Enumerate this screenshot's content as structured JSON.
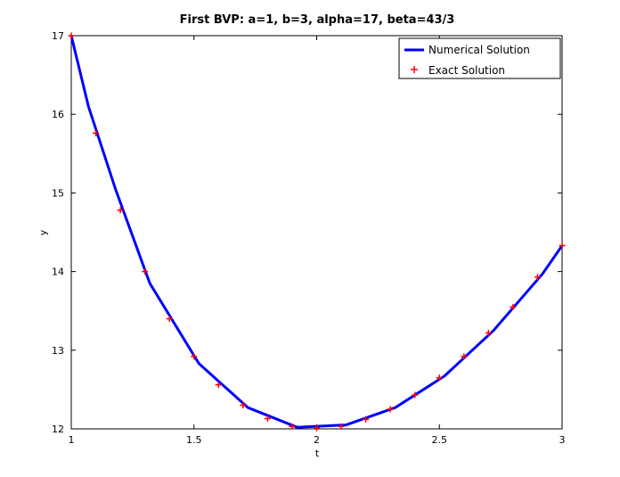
{
  "chart_data": {
    "type": "line",
    "title": "First BVP: a=1, b=3, alpha=17, beta=43/3",
    "xlabel": "t",
    "ylabel": "y",
    "xlim": [
      1,
      3
    ],
    "ylim": [
      12,
      17
    ],
    "xticks": [
      1,
      1.5,
      2,
      2.5,
      3
    ],
    "xtick_labels": [
      "1",
      "1.5",
      "2",
      "2.5",
      "3"
    ],
    "yticks": [
      12,
      13,
      14,
      15,
      16,
      17
    ],
    "ytick_labels": [
      "12",
      "13",
      "14",
      "15",
      "16",
      "17"
    ],
    "grid": false,
    "legend_position": "top-right",
    "series": [
      {
        "name": "Numerical Solution",
        "style": "line",
        "color": "#0000ff",
        "x": [
          1.0,
          1.07,
          1.18,
          1.32,
          1.52,
          1.72,
          1.92,
          2.12,
          2.32,
          2.52,
          2.72,
          2.92,
          3.0
        ],
        "y": [
          17.0,
          16.1,
          15.05,
          13.85,
          12.83,
          12.27,
          12.02,
          12.05,
          12.27,
          12.67,
          13.25,
          13.97,
          14.33
        ]
      },
      {
        "name": "Exact Solution",
        "style": "markers",
        "marker": "+",
        "color": "#ff0000",
        "x": [
          1.0,
          1.1,
          1.2,
          1.3,
          1.4,
          1.5,
          1.6,
          1.7,
          1.8,
          1.9,
          2.0,
          2.1,
          2.2,
          2.3,
          2.4,
          2.5,
          2.6,
          2.7,
          2.8,
          2.9,
          3.0
        ],
        "y": [
          17.0,
          15.76,
          14.78,
          14.0,
          13.4,
          12.92,
          12.56,
          12.3,
          12.13,
          12.03,
          12.01,
          12.03,
          12.12,
          12.25,
          12.43,
          12.65,
          12.92,
          13.22,
          13.55,
          13.93,
          14.33
        ]
      }
    ]
  }
}
